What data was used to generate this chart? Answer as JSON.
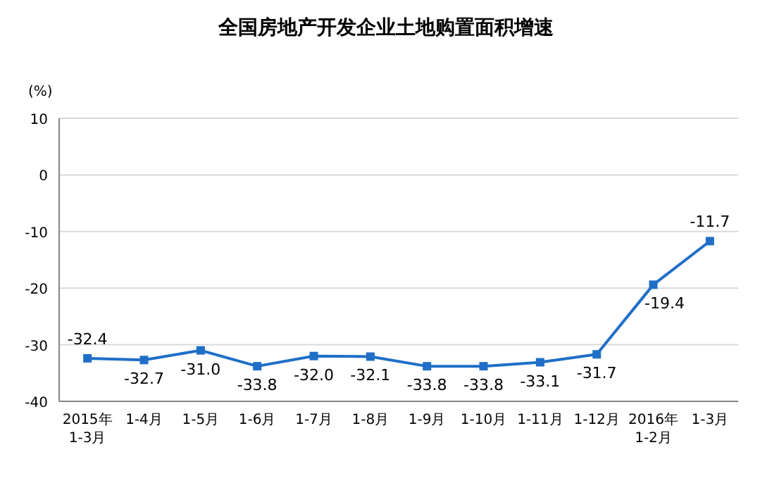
{
  "chart_data": {
    "type": "line",
    "title": "全国房地产开发企业土地购置面积增速",
    "ylabel": "(%)",
    "categories": [
      "2015年\n1-3月",
      "1-4月",
      "1-5月",
      "1-6月",
      "1-7月",
      "1-8月",
      "1-9月",
      "1-10月",
      "1-11月",
      "1-12月",
      "2016年\n1-2月",
      "1-3月"
    ],
    "series": [
      {
        "color": "#1f6fc8",
        "values": [
          -32.4,
          -32.7,
          -31.0,
          -33.8,
          -32.0,
          -32.1,
          -33.8,
          -33.8,
          -33.1,
          -31.7,
          -19.4,
          -11.7
        ],
        "value_labels": [
          "-32.4",
          "-32.7",
          "-31.0",
          "-33.8",
          "-32.0",
          "-32.1",
          "-33.8",
          "-33.8",
          "-33.1",
          "-31.7",
          "-19.4",
          "-11.7"
        ]
      }
    ],
    "ylim": [
      -40,
      10
    ],
    "yticks": [
      -40,
      -30,
      -20,
      -10,
      0,
      10
    ],
    "grid": "y",
    "marker": "square"
  }
}
